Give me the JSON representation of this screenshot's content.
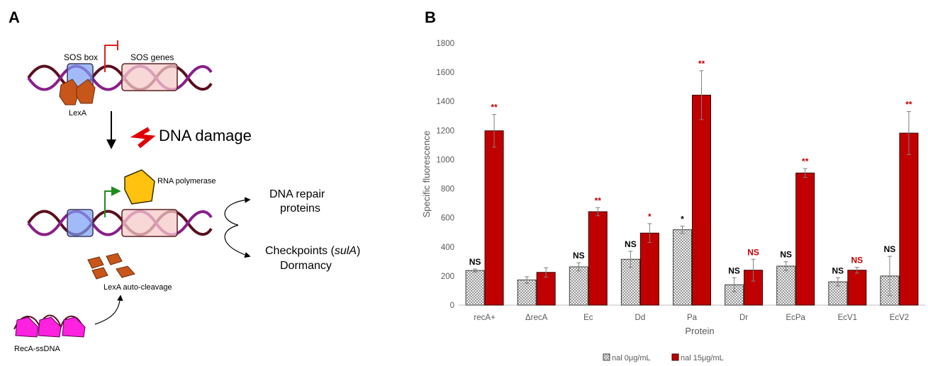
{
  "panel_a": {
    "letter": "A",
    "sos_box": "SOS box",
    "sos_genes": "SOS genes",
    "lexa": "LexA",
    "dna_damage": "DNA damage",
    "rna_polymerase": "RNA polymerase",
    "dna_repair_line1": "DNA repair",
    "dna_repair_line2": "proteins",
    "checkpoints_prefix": "Checkpoints (",
    "checkpoints_gene": "sulA",
    "checkpoints_suffix": ")",
    "dormancy": "Dormancy",
    "lexa_cleavage": "LexA auto-cleavage",
    "reca_ssdna": "RecA-ssDNA"
  },
  "chart_data": {
    "panel_letter": "B",
    "type": "bar",
    "xlabel": "Protein",
    "ylabel": "Specific fluorescence",
    "ylim": [
      0,
      1800
    ],
    "yticks": [
      0,
      200,
      400,
      600,
      800,
      1000,
      1200,
      1400,
      1600,
      1800
    ],
    "grid": false,
    "legend_position": "bottom",
    "categories": [
      "recA+",
      "ΔrecA",
      "Ec",
      "Dd",
      "Pa",
      "Dr",
      "EcPa",
      "EcV1",
      "EcV2"
    ],
    "series": [
      {
        "name": "nal 0μg/mL",
        "color": "#ececec",
        "pattern": "dotted",
        "values": [
          238,
          173,
          263,
          315,
          518,
          140,
          268,
          160,
          200
        ],
        "errors": [
          10,
          22,
          28,
          55,
          25,
          48,
          30,
          28,
          135
        ],
        "annotations": [
          "NS",
          "",
          "NS",
          "NS",
          "*",
          "NS",
          "NS",
          "NS",
          "NS"
        ]
      },
      {
        "name": "nal 15μg/mL",
        "color": "#c00000",
        "pattern": "solid",
        "values": [
          1198,
          225,
          642,
          495,
          1443,
          240,
          908,
          240,
          1182
        ],
        "errors": [
          112,
          32,
          28,
          65,
          168,
          75,
          30,
          20,
          148
        ],
        "annotations": [
          "**",
          "",
          "**",
          "*",
          "**",
          "NS",
          "**",
          "NS",
          "**"
        ]
      }
    ],
    "annotation_colors": {
      "ns_black": "#000000",
      "sig_red": "#c00000",
      "ns_red": "#c00000"
    }
  }
}
